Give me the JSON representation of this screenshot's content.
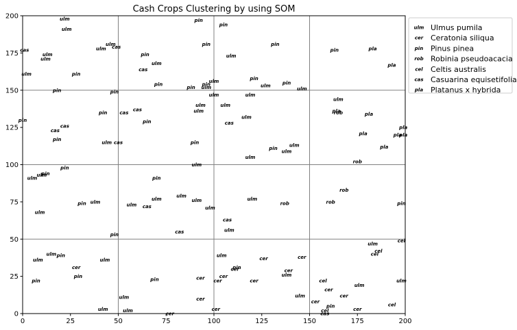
{
  "chart_data": {
    "type": "scatter",
    "title": "Cash Crops Clustering by using SOM",
    "xlabel": "",
    "ylabel": "",
    "xlim": [
      0,
      200
    ],
    "ylim": [
      0,
      200
    ],
    "xticks": [
      0,
      25,
      50,
      75,
      100,
      125,
      150,
      175,
      200
    ],
    "yticks": [
      0,
      25,
      50,
      75,
      100,
      125,
      150,
      175,
      200
    ],
    "grid_lines": [
      50,
      100,
      150
    ],
    "legend_position": "outside-right",
    "legend": [
      {
        "code": "ulm",
        "label": "Ulmus pumila"
      },
      {
        "code": "cer",
        "label": "Ceratonia siliqua"
      },
      {
        "code": "pin",
        "label": "Pinus pinea"
      },
      {
        "code": "rob",
        "label": "Robinia pseudoacacia"
      },
      {
        "code": "cel",
        "label": "Celtis australis"
      },
      {
        "code": "cas",
        "label": "Casuarina equisetifolia"
      },
      {
        "code": "pla",
        "label": "Platanus x hybrida"
      }
    ],
    "points": [
      {
        "t": "ulm",
        "x": 22,
        "y": 198
      },
      {
        "t": "ulm",
        "x": 23,
        "y": 191
      },
      {
        "t": "cas",
        "x": 1,
        "y": 177
      },
      {
        "t": "ulm",
        "x": 13,
        "y": 174
      },
      {
        "t": "ulm",
        "x": 12,
        "y": 171
      },
      {
        "t": "ulm",
        "x": 2,
        "y": 161
      },
      {
        "t": "pin",
        "x": 28,
        "y": 161
      },
      {
        "t": "pin",
        "x": 18,
        "y": 150
      },
      {
        "t": "ulm",
        "x": 41,
        "y": 178
      },
      {
        "t": "ulm",
        "x": 46,
        "y": 181
      },
      {
        "t": "cas",
        "x": 49,
        "y": 179
      },
      {
        "t": "pin",
        "x": 64,
        "y": 174
      },
      {
        "t": "ulm",
        "x": 70,
        "y": 168
      },
      {
        "t": "pin",
        "x": 71,
        "y": 154
      },
      {
        "t": "cas",
        "x": 63,
        "y": 164
      },
      {
        "t": "pin",
        "x": 48,
        "y": 149
      },
      {
        "t": "pin",
        "x": 92,
        "y": 197
      },
      {
        "t": "pin",
        "x": 96,
        "y": 181
      },
      {
        "t": "pin",
        "x": 105,
        "y": 194
      },
      {
        "t": "ulm",
        "x": 109,
        "y": 173
      },
      {
        "t": "pin",
        "x": 88,
        "y": 152
      },
      {
        "t": "pin",
        "x": 96,
        "y": 154
      },
      {
        "t": "ulm",
        "x": 96,
        "y": 152
      },
      {
        "t": "ulm",
        "x": 100,
        "y": 156
      },
      {
        "t": "pin",
        "x": 132,
        "y": 181
      },
      {
        "t": "pin",
        "x": 121,
        "y": 158
      },
      {
        "t": "ulm",
        "x": 127,
        "y": 153
      },
      {
        "t": "pin",
        "x": 138,
        "y": 155
      },
      {
        "t": "ulm",
        "x": 146,
        "y": 151
      },
      {
        "t": "pin",
        "x": 163,
        "y": 177
      },
      {
        "t": "pla",
        "x": 183,
        "y": 178
      },
      {
        "t": "pla",
        "x": 193,
        "y": 167
      },
      {
        "t": "cas",
        "x": 22,
        "y": 126
      },
      {
        "t": "pin",
        "x": 0,
        "y": 130
      },
      {
        "t": "cas",
        "x": 17,
        "y": 123
      },
      {
        "t": "pin",
        "x": 18,
        "y": 117
      },
      {
        "t": "pin",
        "x": 42,
        "y": 135
      },
      {
        "t": "cas",
        "x": 53,
        "y": 135
      },
      {
        "t": "cas",
        "x": 60,
        "y": 137
      },
      {
        "t": "pin",
        "x": 65,
        "y": 129
      },
      {
        "t": "ulm",
        "x": 44,
        "y": 115
      },
      {
        "t": "cas",
        "x": 50,
        "y": 115
      },
      {
        "t": "ulm",
        "x": 100,
        "y": 147
      },
      {
        "t": "ulm",
        "x": 93,
        "y": 140
      },
      {
        "t": "ulm",
        "x": 92,
        "y": 136
      },
      {
        "t": "ulm",
        "x": 106,
        "y": 140
      },
      {
        "t": "cas",
        "x": 108,
        "y": 128
      },
      {
        "t": "ulm",
        "x": 119,
        "y": 147
      },
      {
        "t": "ulm",
        "x": 117,
        "y": 132
      },
      {
        "t": "pin",
        "x": 90,
        "y": 115
      },
      {
        "t": "pin",
        "x": 131,
        "y": 111
      },
      {
        "t": "ulm",
        "x": 142,
        "y": 113
      },
      {
        "t": "ulm",
        "x": 138,
        "y": 109
      },
      {
        "t": "ulm",
        "x": 119,
        "y": 105
      },
      {
        "t": "ulm",
        "x": 165,
        "y": 144
      },
      {
        "t": "pla",
        "x": 164,
        "y": 136
      },
      {
        "t": "rob",
        "x": 165,
        "y": 135
      },
      {
        "t": "pla",
        "x": 181,
        "y": 134
      },
      {
        "t": "pla",
        "x": 178,
        "y": 121
      },
      {
        "t": "pla",
        "x": 189,
        "y": 112
      },
      {
        "t": "pla",
        "x": 196,
        "y": 120
      },
      {
        "t": "pla",
        "x": 199,
        "y": 125
      },
      {
        "t": "pla",
        "x": 199,
        "y": 120
      },
      {
        "t": "rob",
        "x": 175,
        "y": 102
      },
      {
        "t": "ulm",
        "x": 5,
        "y": 91
      },
      {
        "t": "ulm",
        "x": 10,
        "y": 93
      },
      {
        "t": "pin",
        "x": 12,
        "y": 94
      },
      {
        "t": "pin",
        "x": 22,
        "y": 98
      },
      {
        "t": "ulm",
        "x": 9,
        "y": 68
      },
      {
        "t": "pin",
        "x": 31,
        "y": 74
      },
      {
        "t": "ulm",
        "x": 38,
        "y": 75
      },
      {
        "t": "pin",
        "x": 48,
        "y": 53
      },
      {
        "t": "pin",
        "x": 70,
        "y": 91
      },
      {
        "t": "ulm",
        "x": 57,
        "y": 73
      },
      {
        "t": "cas",
        "x": 65,
        "y": 72
      },
      {
        "t": "ulm",
        "x": 70,
        "y": 77
      },
      {
        "t": "ulm",
        "x": 83,
        "y": 79
      },
      {
        "t": "ulm",
        "x": 91,
        "y": 76
      },
      {
        "t": "cas",
        "x": 82,
        "y": 55
      },
      {
        "t": "ulm",
        "x": 91,
        "y": 100
      },
      {
        "t": "ulm",
        "x": 98,
        "y": 71
      },
      {
        "t": "ulm",
        "x": 120,
        "y": 77
      },
      {
        "t": "cas",
        "x": 107,
        "y": 63
      },
      {
        "t": "ulm",
        "x": 108,
        "y": 56
      },
      {
        "t": "rob",
        "x": 137,
        "y": 74
      },
      {
        "t": "rob",
        "x": 168,
        "y": 83
      },
      {
        "t": "rob",
        "x": 161,
        "y": 75
      },
      {
        "t": "pin",
        "x": 198,
        "y": 74
      },
      {
        "t": "ulm",
        "x": 8,
        "y": 36
      },
      {
        "t": "ulm",
        "x": 15,
        "y": 40
      },
      {
        "t": "pin",
        "x": 20,
        "y": 39
      },
      {
        "t": "pin",
        "x": 7,
        "y": 22
      },
      {
        "t": "cer",
        "x": 28,
        "y": 31
      },
      {
        "t": "pin",
        "x": 29,
        "y": 25
      },
      {
        "t": "ulm",
        "x": 43,
        "y": 36
      },
      {
        "t": "ulm",
        "x": 42,
        "y": 3
      },
      {
        "t": "ulm",
        "x": 53,
        "y": 11
      },
      {
        "t": "ulm",
        "x": 55,
        "y": 2
      },
      {
        "t": "pin",
        "x": 69,
        "y": 23
      },
      {
        "t": "cer",
        "x": 77,
        "y": 0
      },
      {
        "t": "cer",
        "x": 93,
        "y": 24
      },
      {
        "t": "cer",
        "x": 93,
        "y": 10
      },
      {
        "t": "ulm",
        "x": 104,
        "y": 39
      },
      {
        "t": "cer",
        "x": 102,
        "y": 22
      },
      {
        "t": "cer",
        "x": 105,
        "y": 25
      },
      {
        "t": "cer",
        "x": 101,
        "y": 3
      },
      {
        "t": "cer",
        "x": 111,
        "y": 30
      },
      {
        "t": "pin",
        "x": 112,
        "y": 31
      },
      {
        "t": "cer",
        "x": 126,
        "y": 37
      },
      {
        "t": "cer",
        "x": 121,
        "y": 22
      },
      {
        "t": "cer",
        "x": 139,
        "y": 29
      },
      {
        "t": "ulm",
        "x": 138,
        "y": 26
      },
      {
        "t": "cer",
        "x": 146,
        "y": 38
      },
      {
        "t": "ulm",
        "x": 145,
        "y": 12
      },
      {
        "t": "cer",
        "x": 153,
        "y": 8
      },
      {
        "t": "cel",
        "x": 157,
        "y": 22
      },
      {
        "t": "cer",
        "x": 160,
        "y": 16
      },
      {
        "t": "pin",
        "x": 161,
        "y": 5
      },
      {
        "t": "cel",
        "x": 158,
        "y": 2
      },
      {
        "t": "cas",
        "x": 158,
        "y": 0
      },
      {
        "t": "cer",
        "x": 168,
        "y": 12
      },
      {
        "t": "ulm",
        "x": 176,
        "y": 19
      },
      {
        "t": "cer",
        "x": 175,
        "y": 3
      },
      {
        "t": "ulm",
        "x": 183,
        "y": 47
      },
      {
        "t": "cel",
        "x": 186,
        "y": 42
      },
      {
        "t": "cel",
        "x": 184,
        "y": 40
      },
      {
        "t": "cel",
        "x": 198,
        "y": 49
      },
      {
        "t": "ulm",
        "x": 198,
        "y": 22
      },
      {
        "t": "cel",
        "x": 193,
        "y": 6
      }
    ]
  }
}
